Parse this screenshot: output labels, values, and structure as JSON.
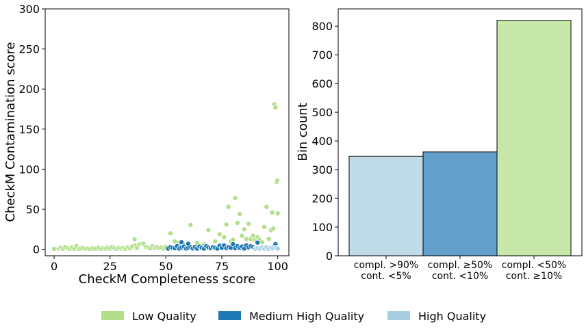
{
  "colors": {
    "low_quality": "#b2df8a",
    "medium_high_quality": "#1f78b4",
    "high_quality": "#a6cee3",
    "bar_high": "#c0dce9",
    "bar_medium": "#62a0cb",
    "bar_low": "#c8e8aa"
  },
  "legend": {
    "placement": "bottom-center",
    "items": [
      {
        "label": "Low Quality",
        "color_key": "low_quality"
      },
      {
        "label": "Medium High Quality",
        "color_key": "medium_high_quality"
      },
      {
        "label": "High Quality",
        "color_key": "high_quality"
      }
    ]
  },
  "chart_data": [
    {
      "type": "scatter",
      "xlabel": "CheckM Completeness score",
      "ylabel": "CheckM Contamination score",
      "xlim": [
        -4,
        105
      ],
      "ylim": [
        -8,
        300
      ],
      "xticks": [
        0,
        25,
        50,
        75,
        100
      ],
      "yticks": [
        0,
        50,
        100,
        150,
        200,
        250,
        300
      ],
      "grid": false,
      "series": [
        {
          "name": "Low Quality",
          "color_key": "low_quality",
          "points": [
            [
              0,
              0.5
            ],
            [
              2,
              1
            ],
            [
              3,
              2
            ],
            [
              4,
              0.8
            ],
            [
              5,
              3
            ],
            [
              6,
              1.5
            ],
            [
              7,
              0.6
            ],
            [
              8,
              2.5
            ],
            [
              9,
              1
            ],
            [
              10,
              4
            ],
            [
              11,
              0.5
            ],
            [
              12,
              1.2
            ],
            [
              13,
              2
            ],
            [
              14,
              0.7
            ],
            [
              15,
              1
            ],
            [
              16,
              0.4
            ],
            [
              17,
              1.5
            ],
            [
              18,
              0.8
            ],
            [
              19,
              1.1
            ],
            [
              20,
              2
            ],
            [
              21,
              0.6
            ],
            [
              22,
              1.3
            ],
            [
              23,
              0.9
            ],
            [
              24,
              2.2
            ],
            [
              25,
              1
            ],
            [
              26,
              3
            ],
            [
              27,
              1.4
            ],
            [
              28,
              0.5
            ],
            [
              29,
              2
            ],
            [
              30,
              1
            ],
            [
              31,
              1.8
            ],
            [
              32,
              0.7
            ],
            [
              33,
              2.6
            ],
            [
              34,
              1.2
            ],
            [
              35,
              3.5
            ],
            [
              36,
              12.5
            ],
            [
              36.5,
              5
            ],
            [
              37,
              2
            ],
            [
              38,
              6
            ],
            [
              39,
              7
            ],
            [
              40,
              7
            ],
            [
              41,
              3
            ],
            [
              42,
              2.5
            ],
            [
              43,
              1.5
            ],
            [
              44,
              4
            ],
            [
              45,
              2
            ],
            [
              46,
              3
            ],
            [
              47,
              1.5
            ],
            [
              48,
              2.5
            ],
            [
              49,
              1
            ],
            [
              50,
              3
            ],
            [
              52,
              20
            ],
            [
              54,
              10
            ],
            [
              56,
              8
            ],
            [
              58,
              6
            ],
            [
              61,
              30.5
            ],
            [
              64,
              8
            ],
            [
              67,
              6
            ],
            [
              69,
              24
            ],
            [
              72,
              10
            ],
            [
              74,
              19
            ],
            [
              76,
              15
            ],
            [
              77,
              31
            ],
            [
              78,
              53
            ],
            [
              79,
              10
            ],
            [
              80,
              12
            ],
            [
              81,
              64
            ],
            [
              82,
              33
            ],
            [
              83,
              44
            ],
            [
              84,
              17
            ],
            [
              85,
              25
            ],
            [
              86,
              13
            ],
            [
              87,
              32
            ],
            [
              88,
              13
            ],
            [
              89,
              17
            ],
            [
              90,
              12
            ],
            [
              91,
              15
            ],
            [
              92,
              12
            ],
            [
              93,
              9
            ],
            [
              94,
              28
            ],
            [
              95,
              53
            ],
            [
              96,
              13
            ],
            [
              97,
              24
            ],
            [
              97.5,
              46
            ],
            [
              98,
              26
            ],
            [
              98.5,
              181
            ],
            [
              99,
              177
            ],
            [
              99.5,
              84
            ],
            [
              99.8,
              86
            ],
            [
              100,
              45
            ]
          ]
        },
        {
          "name": "Medium High Quality",
          "color_key": "medium_high_quality",
          "points": [
            [
              51,
              1
            ],
            [
              52,
              3
            ],
            [
              53,
              2
            ],
            [
              54,
              1.5
            ],
            [
              55,
              4
            ],
            [
              56,
              1
            ],
            [
              57,
              2.5
            ],
            [
              58,
              3.5
            ],
            [
              59,
              1
            ],
            [
              60,
              2
            ],
            [
              61,
              3
            ],
            [
              62,
              1.2
            ],
            [
              63,
              2.8
            ],
            [
              64,
              1
            ],
            [
              65,
              3.5
            ],
            [
              66,
              2
            ],
            [
              67,
              1
            ],
            [
              68,
              4
            ],
            [
              69,
              2.5
            ],
            [
              70,
              1.5
            ],
            [
              71,
              3
            ],
            [
              72,
              2
            ],
            [
              73,
              1
            ],
            [
              74,
              4.5
            ],
            [
              75,
              2
            ],
            [
              76,
              5
            ],
            [
              77,
              1.5
            ],
            [
              78,
              3
            ],
            [
              79,
              2
            ],
            [
              80,
              6.5
            ],
            [
              81,
              1.5
            ],
            [
              82,
              4
            ],
            [
              83,
              2
            ],
            [
              84,
              3.5
            ],
            [
              85,
              1
            ],
            [
              86,
              5
            ],
            [
              87,
              2.5
            ],
            [
              88,
              4
            ],
            [
              89,
              3
            ],
            [
              90,
              1.5
            ],
            [
              91,
              8.5
            ],
            [
              92,
              2
            ],
            [
              93,
              3
            ],
            [
              94,
              1.5
            ],
            [
              95,
              3
            ],
            [
              96,
              2
            ],
            [
              97,
              1.5
            ],
            [
              98,
              3
            ],
            [
              99,
              6.5
            ],
            [
              57,
              9
            ],
            [
              60,
              7
            ]
          ]
        },
        {
          "name": "High Quality",
          "color_key": "high_quality",
          "points": [
            [
              90,
              0.5
            ],
            [
              91,
              1.5
            ],
            [
              92,
              0.8
            ],
            [
              93,
              2
            ],
            [
              94,
              1
            ],
            [
              95,
              2.5
            ],
            [
              96,
              0.6
            ],
            [
              97,
              1.8
            ],
            [
              98,
              1.2
            ],
            [
              99,
              2.2
            ],
            [
              100,
              1
            ]
          ]
        }
      ]
    },
    {
      "type": "bar",
      "ylabel": "Bin count",
      "categories": [
        "compl. >90%\ncont. <5%",
        "compl. ≥50%\ncont. <10%",
        "compl. <50%\ncont. ≥10%"
      ],
      "values": [
        347,
        362,
        820
      ],
      "bar_color_keys": [
        "bar_high",
        "bar_medium",
        "bar_low"
      ],
      "ylim": [
        0,
        860
      ],
      "yticks": [
        0,
        100,
        200,
        300,
        400,
        500,
        600,
        700,
        800
      ],
      "grid": false
    }
  ]
}
